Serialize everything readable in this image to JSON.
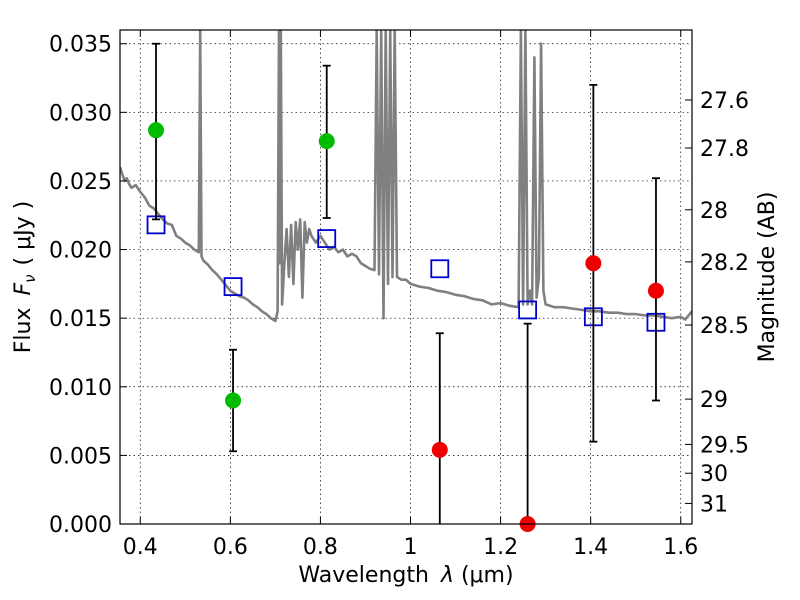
{
  "chart_data": {
    "type": "scatter",
    "title": "",
    "xlabel_prefix": "Wavelength",
    "xlabel_symbol": "λ",
    "xlabel_unit": "(μm)",
    "ylabel_prefix": "Flux",
    "ylabel_symbol": "F",
    "ylabel_subscript": "ν",
    "ylabel_unit": "( μJy )",
    "y2label": "Magnitude (AB)",
    "xlim": [
      0.355,
      1.625
    ],
    "ylim": [
      0.0,
      0.036
    ],
    "grid": true,
    "x_ticks": [
      {
        "value": 0.4,
        "label": "0.4"
      },
      {
        "value": 0.6,
        "label": "0.6"
      },
      {
        "value": 0.8,
        "label": "0.8"
      },
      {
        "value": 1.0,
        "label": "1"
      },
      {
        "value": 1.2,
        "label": "1.2"
      },
      {
        "value": 1.4,
        "label": "1.4"
      },
      {
        "value": 1.6,
        "label": "1.6"
      }
    ],
    "y_ticks": [
      {
        "value": 0.0,
        "label": "0.000"
      },
      {
        "value": 0.005,
        "label": "0.005"
      },
      {
        "value": 0.01,
        "label": "0.010"
      },
      {
        "value": 0.015,
        "label": "0.015"
      },
      {
        "value": 0.02,
        "label": "0.020"
      },
      {
        "value": 0.025,
        "label": "0.025"
      },
      {
        "value": 0.03,
        "label": "0.030"
      },
      {
        "value": 0.035,
        "label": "0.035"
      }
    ],
    "y2_ticks": [
      {
        "flux": 0.0309,
        "label": "27.6"
      },
      {
        "flux": 0.0274,
        "label": "27.8"
      },
      {
        "flux": 0.0229,
        "label": "28"
      },
      {
        "flux": 0.0191,
        "label": "28.2"
      },
      {
        "flux": 0.0145,
        "label": "28.5"
      },
      {
        "flux": 0.0091,
        "label": "29"
      },
      {
        "flux": 0.0058,
        "label": "29.5"
      },
      {
        "flux": 0.0037,
        "label": "30"
      },
      {
        "flux": 0.0015,
        "label": "31"
      }
    ],
    "series": [
      {
        "name": "model_spectrum",
        "type": "line",
        "color": "#808080",
        "x": [
          0.355,
          0.36,
          0.365,
          0.37,
          0.375,
          0.38,
          0.39,
          0.4,
          0.41,
          0.42,
          0.43,
          0.44,
          0.45,
          0.46,
          0.47,
          0.48,
          0.49,
          0.5,
          0.51,
          0.52,
          0.53,
          0.533,
          0.536,
          0.54,
          0.55,
          0.56,
          0.57,
          0.58,
          0.59,
          0.6,
          0.61,
          0.62,
          0.63,
          0.64,
          0.65,
          0.66,
          0.67,
          0.68,
          0.69,
          0.7,
          0.705,
          0.708,
          0.71,
          0.712,
          0.715,
          0.72,
          0.725,
          0.73,
          0.735,
          0.74,
          0.745,
          0.75,
          0.755,
          0.76,
          0.765,
          0.77,
          0.775,
          0.78,
          0.79,
          0.8,
          0.81,
          0.82,
          0.83,
          0.84,
          0.85,
          0.86,
          0.87,
          0.88,
          0.89,
          0.9,
          0.91,
          0.92,
          0.925,
          0.93,
          0.935,
          0.94,
          0.945,
          0.95,
          0.955,
          0.96,
          0.965,
          0.97,
          0.98,
          0.99,
          1.0,
          1.02,
          1.04,
          1.06,
          1.08,
          1.1,
          1.12,
          1.14,
          1.16,
          1.18,
          1.2,
          1.22,
          1.24,
          1.245,
          1.25,
          1.255,
          1.26,
          1.265,
          1.27,
          1.275,
          1.28,
          1.285,
          1.29,
          1.295,
          1.3,
          1.32,
          1.34,
          1.36,
          1.38,
          1.4,
          1.42,
          1.44,
          1.46,
          1.48,
          1.5,
          1.52,
          1.54,
          1.56,
          1.58,
          1.6,
          1.61,
          1.625
        ],
        "y": [
          0.026,
          0.0255,
          0.025,
          0.0252,
          0.0248,
          0.0245,
          0.0247,
          0.0242,
          0.0238,
          0.0232,
          0.023,
          0.0226,
          0.0222,
          0.0219,
          0.0218,
          0.021,
          0.0208,
          0.0205,
          0.0203,
          0.02,
          0.0198,
          0.036,
          0.0195,
          0.0192,
          0.0189,
          0.0185,
          0.0182,
          0.0178,
          0.0174,
          0.017,
          0.0168,
          0.0166,
          0.0165,
          0.0163,
          0.016,
          0.0158,
          0.0155,
          0.0153,
          0.015,
          0.0148,
          0.0155,
          0.036,
          0.019,
          0.036,
          0.016,
          0.019,
          0.0215,
          0.018,
          0.0218,
          0.0175,
          0.022,
          0.02,
          0.0222,
          0.0165,
          0.022,
          0.0205,
          0.0215,
          0.021,
          0.0205,
          0.021,
          0.0205,
          0.02,
          0.0202,
          0.0198,
          0.02,
          0.0195,
          0.0197,
          0.0195,
          0.019,
          0.0188,
          0.0186,
          0.0185,
          0.036,
          0.0182,
          0.036,
          0.015,
          0.036,
          0.0175,
          0.036,
          0.018,
          0.036,
          0.018,
          0.0178,
          0.0178,
          0.0175,
          0.0173,
          0.0172,
          0.017,
          0.0169,
          0.0167,
          0.0166,
          0.0164,
          0.0163,
          0.016,
          0.0161,
          0.0159,
          0.0158,
          0.036,
          0.016,
          0.036,
          0.016,
          0.017,
          0.016,
          0.034,
          0.0165,
          0.018,
          0.035,
          0.017,
          0.016,
          0.0158,
          0.0158,
          0.0157,
          0.0156,
          0.0155,
          0.0155,
          0.0154,
          0.0154,
          0.0153,
          0.0153,
          0.0152,
          0.0152,
          0.0151,
          0.015,
          0.0151,
          0.0149,
          0.0155
        ]
      },
      {
        "name": "model_photometry",
        "type": "scatter",
        "marker": "open-square",
        "color": "#0000cc",
        "x": [
          0.435,
          0.606,
          0.814,
          1.065,
          1.26,
          1.406,
          1.545
        ],
        "y": [
          0.0218,
          0.0173,
          0.0208,
          0.0186,
          0.0156,
          0.0151,
          0.0147
        ]
      },
      {
        "name": "detections",
        "type": "errorbar",
        "marker": "filled-circle",
        "color": "#00bb00",
        "x": [
          0.435,
          0.606,
          0.814
        ],
        "y": [
          0.0287,
          0.009,
          0.0279
        ],
        "yerr_low": [
          0.0222,
          0.0053,
          0.0223
        ],
        "yerr_high": [
          0.035,
          0.0127,
          0.0334
        ]
      },
      {
        "name": "non_detections",
        "type": "errorbar",
        "marker": "filled-circle",
        "color": "#ee0000",
        "x": [
          1.065,
          1.26,
          1.406,
          1.545
        ],
        "y": [
          0.0054,
          0.0,
          0.019,
          0.017
        ],
        "yerr_low": [
          0.0,
          0.0,
          0.006,
          0.009
        ],
        "yerr_high": [
          0.0139,
          0.0146,
          0.032,
          0.0252
        ]
      }
    ]
  }
}
